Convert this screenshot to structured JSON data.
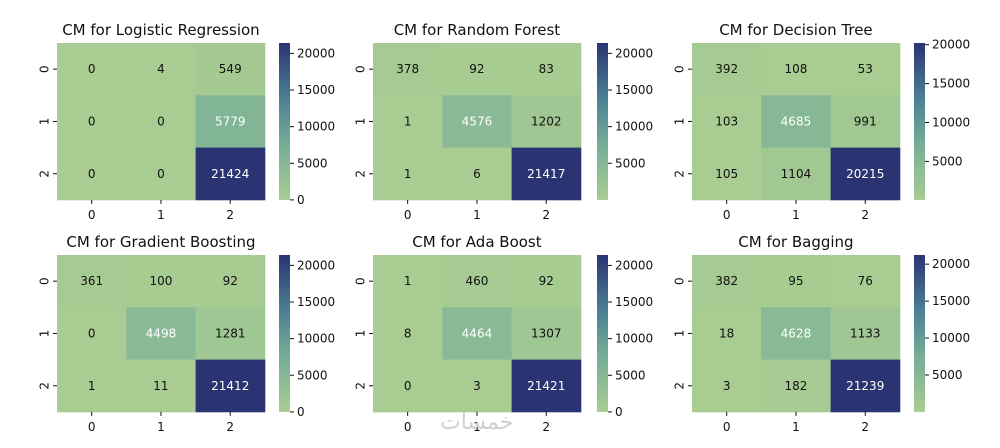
{
  "chart_data": [
    {
      "type": "heatmap",
      "title": "CM for Logistic Regression",
      "x": [
        "0",
        "1",
        "2"
      ],
      "y": [
        "0",
        "1",
        "2"
      ],
      "values": [
        [
          0,
          4,
          549
        ],
        [
          0,
          0,
          5779
        ],
        [
          0,
          0,
          21424
        ]
      ],
      "colorbar_ticks": [
        "0",
        "5000",
        "10000",
        "15000",
        "20000"
      ],
      "colorbar_range": [
        0,
        21424
      ]
    },
    {
      "type": "heatmap",
      "title": "CM for Random Forest",
      "x": [
        "0",
        "1",
        "2"
      ],
      "y": [
        "0",
        "1",
        "2"
      ],
      "values": [
        [
          378,
          92,
          83
        ],
        [
          1,
          4576,
          1202
        ],
        [
          1,
          6,
          21417
        ]
      ],
      "colorbar_ticks": [
        "5000",
        "10000",
        "15000",
        "20000"
      ],
      "colorbar_range": [
        1,
        21417
      ]
    },
    {
      "type": "heatmap",
      "title": "CM for Decision Tree",
      "x": [
        "0",
        "1",
        "2"
      ],
      "y": [
        "0",
        "1",
        "2"
      ],
      "values": [
        [
          392,
          108,
          53
        ],
        [
          103,
          4685,
          991
        ],
        [
          105,
          1104,
          20215
        ]
      ],
      "colorbar_ticks": [
        "5000",
        "10000",
        "15000",
        "20000"
      ],
      "colorbar_range": [
        53,
        20215
      ]
    },
    {
      "type": "heatmap",
      "title": "CM for Gradient Boosting",
      "x": [
        "0",
        "1",
        "2"
      ],
      "y": [
        "0",
        "1",
        "2"
      ],
      "values": [
        [
          361,
          100,
          92
        ],
        [
          0,
          4498,
          1281
        ],
        [
          1,
          11,
          21412
        ]
      ],
      "colorbar_ticks": [
        "0",
        "5000",
        "10000",
        "15000",
        "20000"
      ],
      "colorbar_range": [
        0,
        21412
      ]
    },
    {
      "type": "heatmap",
      "title": "CM for Ada Boost",
      "x": [
        "0",
        "1",
        "2"
      ],
      "y": [
        "0",
        "1",
        "2"
      ],
      "values": [
        [
          1,
          460,
          92
        ],
        [
          8,
          4464,
          1307
        ],
        [
          0,
          3,
          21421
        ]
      ],
      "colorbar_ticks": [
        "0",
        "5000",
        "10000",
        "15000",
        "20000"
      ],
      "colorbar_range": [
        0,
        21421
      ]
    },
    {
      "type": "heatmap",
      "title": "CM for Bagging",
      "x": [
        "0",
        "1",
        "2"
      ],
      "y": [
        "0",
        "1",
        "2"
      ],
      "values": [
        [
          382,
          95,
          76
        ],
        [
          18,
          4628,
          1133
        ],
        [
          3,
          182,
          21239
        ]
      ],
      "colorbar_ticks": [
        "5000",
        "10000",
        "15000",
        "20000"
      ],
      "colorbar_range": [
        3,
        21239
      ]
    }
  ],
  "colors": {
    "low": "#a8cc92",
    "mid": "#6fa89a",
    "high": "#2b3473"
  },
  "watermark": "خمسات"
}
